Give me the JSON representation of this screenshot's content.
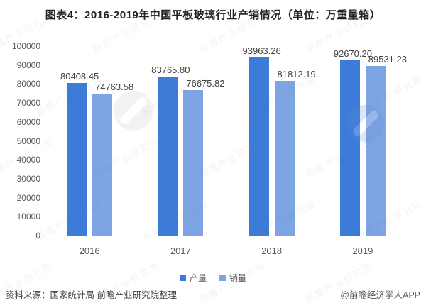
{
  "title": "图表4：2016-2019年中国平板玻璃行业产销情况（单位：万重量箱）",
  "chart_data": {
    "type": "bar",
    "title": "图表4：2016-2019年中国平板玻璃行业产销情况（单位：万重量箱）",
    "unit": "万重量箱",
    "categories": [
      "2016",
      "2017",
      "2018",
      "2019"
    ],
    "series": [
      {
        "name": "产量",
        "key": "production",
        "color": "#3d7bd8",
        "values": [
          80408.45,
          83765.8,
          93963.26,
          92670.2
        ]
      },
      {
        "name": "销量",
        "key": "sales",
        "color": "#7da5e4",
        "values": [
          74763.58,
          76675.82,
          81812.19,
          89531.23
        ]
      }
    ],
    "value_label_decimals": 2,
    "ylim": [
      0,
      100000
    ],
    "ytick_step": 10000,
    "grid": false,
    "legend_position": "bottom"
  },
  "footer": {
    "source": "资料来源：国家统计局 前瞻产业研究院整理",
    "credit": "@前瞻经济学人APP"
  },
  "watermark": {
    "text": "前瞻产业研究院"
  },
  "colors": {
    "production_bar": "#3d7bd8",
    "sales_bar": "#7da5e4",
    "axis_line": "#d8d8d8",
    "tick_text": "#595959",
    "label_text": "#404040",
    "title_text": "#222222"
  }
}
